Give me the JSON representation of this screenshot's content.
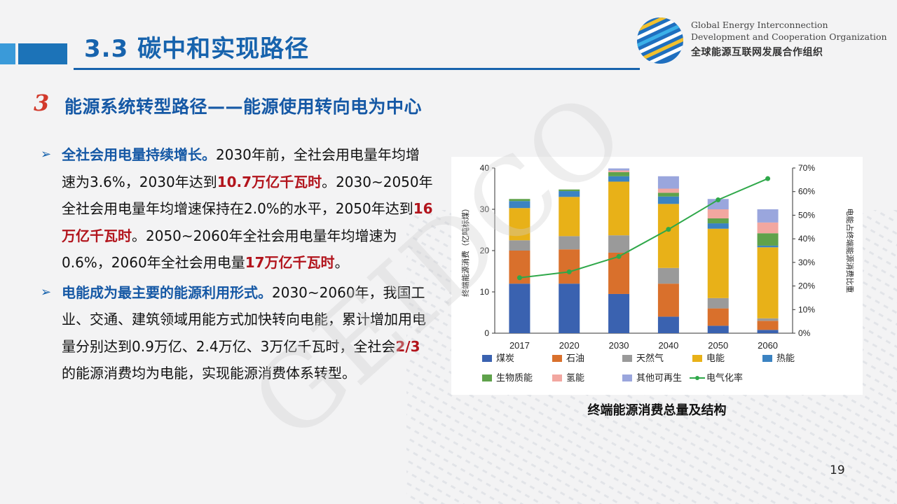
{
  "header": {
    "title": "3.3 碳中和实现路径",
    "org_en_line1": "Global Energy Interconnection",
    "org_en_line2": "Development and Cooperation Organization",
    "org_cn": "全球能源互联网发展合作组织",
    "watermark": "GEIDCO"
  },
  "subtitle": {
    "number": "3",
    "text": "能源系统转型路径——能源使用转向电为中心"
  },
  "paragraphs": [
    {
      "runs": [
        {
          "text": "全社会用电量持续增长。",
          "style": "blue"
        },
        {
          "text": "2030年前，全社会用电量年均增速为3.6%，2030年达到",
          "style": "normal"
        },
        {
          "text": "10.7万亿千瓦时",
          "style": "red"
        },
        {
          "text": "。2030~2050年全社会用电量年均增速保持在2.0%的水平，2050年达到",
          "style": "normal"
        },
        {
          "text": "16万亿千瓦时",
          "style": "red"
        },
        {
          "text": "。2050~2060年全社会用电量年均增速为0.6%，2060年全社会用电量",
          "style": "normal"
        },
        {
          "text": "17万亿千瓦时",
          "style": "red"
        },
        {
          "text": "。",
          "style": "normal"
        }
      ]
    },
    {
      "runs": [
        {
          "text": "电能成为最主要的能源利用形式。",
          "style": "blue"
        },
        {
          "text": "2030~2060年，我国工业、交通、建筑领域用能方式加快转向电能，累计增加用电量分别达到0.9万亿、2.4万亿、3万亿千瓦时，全社会",
          "style": "normal"
        },
        {
          "text": "2/3",
          "style": "red"
        },
        {
          "text": "的能源消费均为电能，实现能源消费体系转型。",
          "style": "normal"
        }
      ]
    }
  ],
  "chart_data": {
    "type": "bar",
    "stacked": true,
    "title": "终端能源消费总量及结构",
    "ylabel": "终端能源消费（亿吨标煤）",
    "y2label": "电能占终端能源消费比重",
    "categories": [
      "2017",
      "2020",
      "2030",
      "2040",
      "2050",
      "2060"
    ],
    "ylim": [
      0,
      40
    ],
    "yticks": [
      0,
      10,
      20,
      30,
      40
    ],
    "y2lim": [
      0,
      70
    ],
    "y2ticks": [
      "0%",
      "10%",
      "20%",
      "30%",
      "40%",
      "50%",
      "60%",
      "70%"
    ],
    "legend_position": "bottom",
    "series": [
      {
        "name": "煤炭",
        "color": "#3a62b0",
        "values": [
          12.0,
          12.0,
          9.5,
          4.0,
          1.8,
          0.8
        ]
      },
      {
        "name": "石油",
        "color": "#d9702c",
        "values": [
          8.0,
          8.3,
          10.0,
          8.0,
          4.2,
          2.2
        ]
      },
      {
        "name": "天然气",
        "color": "#9a9a9a",
        "values": [
          2.5,
          3.2,
          4.2,
          3.8,
          2.5,
          0.6
        ]
      },
      {
        "name": "电能",
        "color": "#e8b118",
        "values": [
          7.8,
          9.5,
          13.0,
          15.5,
          16.8,
          17.2
        ]
      },
      {
        "name": "热能",
        "color": "#3b83c2",
        "values": [
          1.7,
          1.4,
          1.3,
          1.8,
          1.3,
          0.4
        ]
      },
      {
        "name": "生物质能",
        "color": "#5fa24b",
        "values": [
          0.5,
          0.4,
          1.0,
          0.9,
          1.2,
          3.0
        ]
      },
      {
        "name": "氢能",
        "color": "#f2a7a0",
        "values": [
          0.0,
          0.0,
          0.4,
          1.0,
          2.2,
          2.6
        ]
      },
      {
        "name": "其他可再生",
        "color": "#9aa6dd",
        "values": [
          0.0,
          0.0,
          0.5,
          3.0,
          2.5,
          3.2
        ]
      }
    ],
    "line_series": {
      "name": "电气化率",
      "color": "#2fa84a",
      "axis": "y2",
      "values": [
        23.5,
        26.0,
        32.5,
        44.0,
        56.5,
        65.5
      ]
    }
  },
  "page_number": "19"
}
